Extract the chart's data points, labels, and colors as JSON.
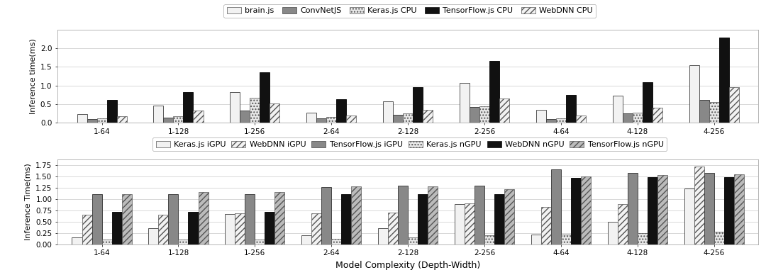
{
  "categories": [
    "1-64",
    "1-128",
    "1-256",
    "2-64",
    "2-128",
    "2-256",
    "4-64",
    "4-128",
    "4-256"
  ],
  "top_chart": {
    "ylabel": "Inference time(ms)",
    "ylim": [
      0,
      2.5
    ],
    "yticks": [
      0.0,
      0.5,
      1.0,
      1.5,
      2.0
    ],
    "series": {
      "brain.js": [
        0.23,
        0.47,
        0.82,
        0.28,
        0.57,
        1.08,
        0.35,
        0.73,
        1.55
      ],
      "ConvNetJS": [
        0.1,
        0.14,
        0.33,
        0.13,
        0.22,
        0.42,
        0.1,
        0.25,
        0.62
      ],
      "Keras.js CPU": [
        0.12,
        0.17,
        0.67,
        0.15,
        0.25,
        0.45,
        0.13,
        0.27,
        0.55
      ],
      "TensorFlow.js CPU": [
        0.62,
        0.83,
        1.35,
        0.63,
        0.95,
        1.67,
        0.75,
        1.1,
        2.28
      ],
      "WebDNN CPU": [
        0.18,
        0.33,
        0.52,
        0.2,
        0.35,
        0.65,
        0.2,
        0.4,
        0.95
      ]
    }
  },
  "bottom_chart": {
    "ylabel": "Inference Time(ms)",
    "ylim": [
      0,
      1.875
    ],
    "yticks": [
      0.0,
      0.25,
      0.5,
      0.75,
      1.0,
      1.25,
      1.5,
      1.75
    ],
    "series": {
      "Keras.js iGPU": [
        0.15,
        0.35,
        0.67,
        0.2,
        0.35,
        0.88,
        0.22,
        0.5,
        1.23
      ],
      "WebDNN iGPU": [
        0.65,
        0.65,
        0.68,
        0.68,
        0.7,
        0.9,
        0.83,
        0.88,
        1.72
      ],
      "TensorFlow.js iGPU": [
        1.1,
        1.1,
        1.1,
        1.27,
        1.3,
        1.3,
        1.65,
        1.58,
        1.58
      ],
      "Keras.js nGPU": [
        0.1,
        0.1,
        0.1,
        0.12,
        0.15,
        0.2,
        0.22,
        0.25,
        0.28
      ],
      "WebDNN nGPU": [
        0.72,
        0.72,
        0.72,
        1.1,
        1.1,
        1.1,
        1.47,
        1.48,
        1.48
      ],
      "TensorFlow.js nGPU": [
        1.1,
        1.15,
        1.15,
        1.28,
        1.28,
        1.22,
        1.5,
        1.53,
        1.55
      ]
    }
  },
  "xlabel": "Model Complexity (Depth-Width)",
  "background_color": "#ffffff",
  "top_legend_labels": [
    "brain.js",
    "ConvNetJS",
    "Keras.js CPU",
    "TensorFlow.js CPU",
    "WebDNN CPU"
  ],
  "bot_legend_labels": [
    "Keras.js iGPU",
    "WebDNN iGPU",
    "TensorFlow.js iGPU",
    "Keras.js nGPU",
    "WebDNN nGPU",
    "TensorFlow.js nGPU"
  ]
}
